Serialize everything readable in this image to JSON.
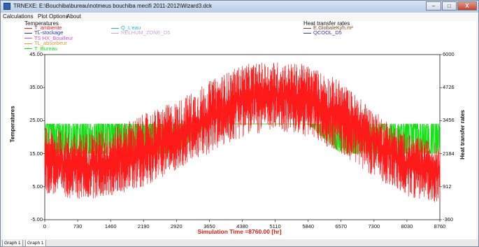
{
  "window": {
    "title": "TRNEXE: E:\\Bouchiba\\bureau\\notmeus bouchiba mecifi 2011-2012\\Wizard3.dck",
    "controls": {
      "minimize": "–",
      "maximize": "□",
      "close": "X"
    }
  },
  "menu": [
    "Calculations",
    "Plot Options",
    "About"
  ],
  "legend": {
    "left_title": "Temperatures",
    "right_title": "Heat transfer rates",
    "left_col1": [
      {
        "label": "T_ambiente",
        "color": "#ff1a1a"
      },
      {
        "label": "TL-stockage",
        "color": "#2a2ad8"
      },
      {
        "label": "TS HX_Bouilleur",
        "color": "#d24fd2"
      },
      {
        "label": "TL_absorbeur",
        "color": "#d99a2b"
      },
      {
        "label": "T_Bureau",
        "color": "#18e018"
      }
    ],
    "left_col2": [
      {
        "label": "Q_L'eau",
        "color": "#1fb8c9"
      },
      {
        "label": "RELHUM_ZONE_D5",
        "color": "#c8a8d8"
      }
    ],
    "right_col": [
      {
        "label": "E.GlobaleKj/h.m²",
        "color": "#7a4a20"
      },
      {
        "label": "QCOOL_D5",
        "color": "#3a3a9a"
      }
    ]
  },
  "axes": {
    "left_label": "Temperatures",
    "right_label": "Heat transfer rates",
    "left_ticks": [
      "45.00",
      "35.00",
      "25.00",
      "15.00",
      "5.00",
      "-5.00"
    ],
    "right_ticks": [
      "6000",
      "4726",
      "3456",
      "2184",
      "912",
      "-360"
    ],
    "x_ticks": [
      "0",
      "730",
      "1460",
      "2190",
      "2920",
      "3650",
      "4380",
      "5110",
      "5840",
      "6570",
      "7300",
      "8030",
      "8760"
    ],
    "x_label": "Simulation Time =8760.00 [hr]"
  },
  "chart_data": {
    "type": "line",
    "title": "",
    "xlabel": "Simulation Time =8760.00 [hr]",
    "ylabel": "Temperatures",
    "ylabel_right": "Heat transfer rates",
    "xlim": [
      0,
      8760
    ],
    "ylim": [
      -5,
      45
    ],
    "ylim_right": [
      -360,
      6000
    ],
    "grid": false,
    "legend_position": "top",
    "series": [
      {
        "name": "T_ambiente",
        "color": "#ff1a1a",
        "x": [
          0,
          730,
          1460,
          2190,
          2920,
          3650,
          4380,
          5110,
          5840,
          6570,
          7300,
          8030,
          8760
        ],
        "mean": [
          13,
          11,
          12,
          16,
          20,
          26,
          32,
          33,
          31,
          26,
          19,
          12,
          10
        ],
        "min": [
          3,
          1,
          2,
          5,
          10,
          15,
          20,
          22,
          20,
          15,
          8,
          2,
          0
        ],
        "max": [
          23,
          21,
          23,
          27,
          31,
          37,
          42,
          43,
          42,
          37,
          28,
          21,
          18
        ]
      },
      {
        "name": "T_Bureau",
        "color": "#18e018",
        "x": [
          0,
          730,
          1460,
          2190,
          2920,
          3650,
          4380,
          5110,
          5840,
          6570,
          7300,
          8030,
          8760
        ],
        "min": [
          15,
          15,
          15,
          15,
          15,
          24,
          24,
          24,
          24,
          15,
          15,
          15,
          15
        ],
        "max": [
          24,
          24,
          24,
          24,
          24,
          24,
          24,
          24,
          24,
          24,
          24,
          24,
          24
        ]
      }
    ]
  }
}
